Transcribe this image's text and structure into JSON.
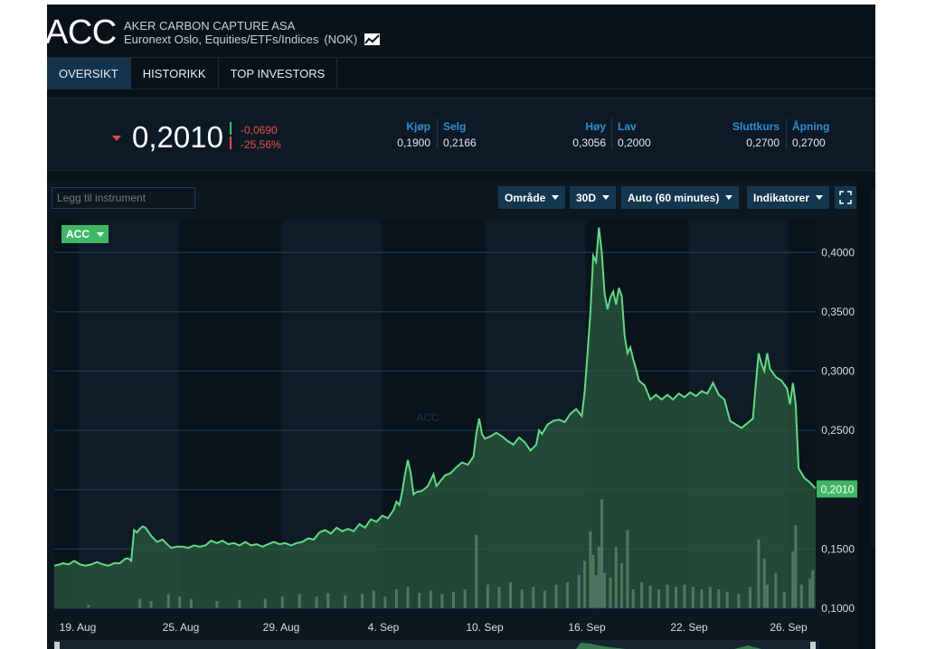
{
  "header": {
    "ticker": "ACC",
    "company_name": "AKER CARBON CAPTURE ASA",
    "exchange": "Euronext Oslo, Equities/ETFs/Indices",
    "currency": "(NOK)",
    "chart_icon": "line-chart-icon"
  },
  "tabs": [
    {
      "label": "OVERSIKT",
      "active": true
    },
    {
      "label": "HISTORIKK",
      "active": false
    },
    {
      "label": "TOP INVESTORS",
      "active": false
    }
  ],
  "quote": {
    "last": "0,2010",
    "change_abs": "-0,0690",
    "change_pct": "-25,56%",
    "direction_icon": "triangle-down-icon",
    "bid_label": "Kjøp",
    "bid": "0,1900",
    "ask_label": "Selg",
    "ask": "0,2166",
    "high_label": "Høy",
    "high": "0,3056",
    "low_label": "Lav",
    "low": "0,2000",
    "close_label": "Sluttkurs",
    "close": "0,2700",
    "open_label": "Åpning",
    "open": "0,2700"
  },
  "chart_controls": {
    "add_instrument_placeholder": "Legg til instrument",
    "range_label": "Område",
    "period_label": "30D",
    "interval_label": "Auto (60 minutes)",
    "indicators_label": "Indikatorer",
    "fullscreen_icon": "fullscreen-icon",
    "series_badge": "ACC"
  },
  "colors": {
    "accent_blue": "#2f8fd1",
    "down_red": "#e84c4c",
    "up_green": "#3fbf6a",
    "series_green": "#5fd27f",
    "panel_bg": "#0c1720"
  },
  "chart_data": {
    "type": "area",
    "series_name": "ACC",
    "watermark": "ACC",
    "current_value_label": "0,2010",
    "x_ticks": [
      "19. Aug",
      "25. Aug",
      "29. Aug",
      "4. Sep",
      "10. Sep",
      "16. Sep",
      "22. Sep",
      "26. Sep"
    ],
    "y_ticks": [
      "0,1000",
      "0,1500",
      "0,2000",
      "0,2500",
      "0,3000",
      "0,3500",
      "0,4000"
    ],
    "ylim": [
      0.1,
      0.42
    ],
    "points": [
      [
        0,
        0.136
      ],
      [
        2,
        0.137
      ],
      [
        3,
        0.138
      ],
      [
        5,
        0.137
      ],
      [
        7,
        0.14
      ],
      [
        9,
        0.137
      ],
      [
        11,
        0.136
      ],
      [
        13,
        0.137
      ],
      [
        15,
        0.139
      ],
      [
        17,
        0.137
      ],
      [
        19,
        0.136
      ],
      [
        21,
        0.138
      ],
      [
        23,
        0.138
      ],
      [
        25,
        0.142
      ],
      [
        26,
        0.142
      ],
      [
        27,
        0.14
      ],
      [
        28,
        0.166
      ],
      [
        29,
        0.164
      ],
      [
        30,
        0.167
      ],
      [
        31,
        0.169
      ],
      [
        32,
        0.168
      ],
      [
        34,
        0.161
      ],
      [
        36,
        0.156
      ],
      [
        38,
        0.158
      ],
      [
        40,
        0.153
      ],
      [
        41,
        0.151
      ],
      [
        43,
        0.152
      ],
      [
        45,
        0.152
      ],
      [
        47,
        0.151
      ],
      [
        49,
        0.153
      ],
      [
        51,
        0.152
      ],
      [
        53,
        0.153
      ],
      [
        55,
        0.157
      ],
      [
        57,
        0.155
      ],
      [
        59,
        0.157
      ],
      [
        61,
        0.154
      ],
      [
        63,
        0.155
      ],
      [
        65,
        0.153
      ],
      [
        67,
        0.156
      ],
      [
        69,
        0.153
      ],
      [
        71,
        0.154
      ],
      [
        73,
        0.152
      ],
      [
        75,
        0.154
      ],
      [
        77,
        0.156
      ],
      [
        79,
        0.154
      ],
      [
        81,
        0.155
      ],
      [
        83,
        0.153
      ],
      [
        85,
        0.155
      ],
      [
        87,
        0.156
      ],
      [
        89,
        0.159
      ],
      [
        91,
        0.158
      ],
      [
        93,
        0.164
      ],
      [
        95,
        0.166
      ],
      [
        97,
        0.163
      ],
      [
        99,
        0.168
      ],
      [
        101,
        0.165
      ],
      [
        103,
        0.167
      ],
      [
        105,
        0.165
      ],
      [
        107,
        0.171
      ],
      [
        109,
        0.168
      ],
      [
        111,
        0.175
      ],
      [
        113,
        0.173
      ],
      [
        115,
        0.178
      ],
      [
        117,
        0.176
      ],
      [
        119,
        0.183
      ],
      [
        120,
        0.19
      ],
      [
        121,
        0.187
      ],
      [
        122,
        0.198
      ],
      [
        123,
        0.213
      ],
      [
        124,
        0.225
      ],
      [
        125,
        0.214
      ],
      [
        126,
        0.196
      ],
      [
        127,
        0.198
      ],
      [
        129,
        0.199
      ],
      [
        131,
        0.203
      ],
      [
        133,
        0.213
      ],
      [
        134,
        0.203
      ],
      [
        135,
        0.206
      ],
      [
        137,
        0.212
      ],
      [
        139,
        0.214
      ],
      [
        141,
        0.219
      ],
      [
        143,
        0.223
      ],
      [
        145,
        0.221
      ],
      [
        147,
        0.228
      ],
      [
        148,
        0.247
      ],
      [
        149,
        0.26
      ],
      [
        150,
        0.247
      ],
      [
        151,
        0.243
      ],
      [
        153,
        0.245
      ],
      [
        155,
        0.248
      ],
      [
        157,
        0.245
      ],
      [
        159,
        0.241
      ],
      [
        161,
        0.238
      ],
      [
        163,
        0.244
      ],
      [
        165,
        0.24
      ],
      [
        167,
        0.233
      ],
      [
        169,
        0.238
      ],
      [
        170,
        0.25
      ],
      [
        171,
        0.247
      ],
      [
        173,
        0.255
      ],
      [
        175,
        0.258
      ],
      [
        177,
        0.259
      ],
      [
        179,
        0.257
      ],
      [
        181,
        0.264
      ],
      [
        183,
        0.268
      ],
      [
        185,
        0.262
      ],
      [
        186,
        0.283
      ],
      [
        187,
        0.315
      ],
      [
        188,
        0.35
      ],
      [
        189,
        0.397
      ],
      [
        190,
        0.392
      ],
      [
        191,
        0.421
      ],
      [
        192,
        0.4
      ],
      [
        193,
        0.365
      ],
      [
        194,
        0.352
      ],
      [
        195,
        0.362
      ],
      [
        196,
        0.367
      ],
      [
        197,
        0.356
      ],
      [
        198,
        0.37
      ],
      [
        199,
        0.363
      ],
      [
        200,
        0.33
      ],
      [
        201,
        0.315
      ],
      [
        202,
        0.32
      ],
      [
        203,
        0.31
      ],
      [
        204,
        0.302
      ],
      [
        205,
        0.292
      ],
      [
        207,
        0.288
      ],
      [
        209,
        0.276
      ],
      [
        211,
        0.28
      ],
      [
        213,
        0.276
      ],
      [
        215,
        0.28
      ],
      [
        217,
        0.276
      ],
      [
        219,
        0.281
      ],
      [
        221,
        0.278
      ],
      [
        223,
        0.282
      ],
      [
        225,
        0.279
      ],
      [
        227,
        0.283
      ],
      [
        229,
        0.281
      ],
      [
        231,
        0.29
      ],
      [
        233,
        0.28
      ],
      [
        235,
        0.276
      ],
      [
        237,
        0.258
      ],
      [
        239,
        0.255
      ],
      [
        241,
        0.252
      ],
      [
        243,
        0.256
      ],
      [
        245,
        0.26
      ],
      [
        246,
        0.289
      ],
      [
        247,
        0.315
      ],
      [
        248,
        0.306
      ],
      [
        249,
        0.3
      ],
      [
        250,
        0.315
      ],
      [
        251,
        0.302
      ],
      [
        253,
        0.295
      ],
      [
        255,
        0.292
      ],
      [
        257,
        0.285
      ],
      [
        258,
        0.272
      ],
      [
        259,
        0.29
      ],
      [
        260,
        0.272
      ],
      [
        261,
        0.218
      ],
      [
        263,
        0.21
      ],
      [
        265,
        0.206
      ],
      [
        267,
        0.201
      ]
    ],
    "volume_bars": [
      [
        12,
        0.003
      ],
      [
        30,
        0.008
      ],
      [
        34,
        0.006
      ],
      [
        40,
        0.012
      ],
      [
        44,
        0.01
      ],
      [
        48,
        0.008
      ],
      [
        57,
        0.006
      ],
      [
        65,
        0.007
      ],
      [
        74,
        0.008
      ],
      [
        80,
        0.01
      ],
      [
        86,
        0.012
      ],
      [
        92,
        0.01
      ],
      [
        96,
        0.013
      ],
      [
        102,
        0.011
      ],
      [
        108,
        0.012
      ],
      [
        112,
        0.015
      ],
      [
        116,
        0.01
      ],
      [
        120,
        0.016
      ],
      [
        124,
        0.018
      ],
      [
        128,
        0.013
      ],
      [
        132,
        0.015
      ],
      [
        136,
        0.012
      ],
      [
        140,
        0.014
      ],
      [
        144,
        0.016
      ],
      [
        148,
        0.062
      ],
      [
        152,
        0.02
      ],
      [
        156,
        0.018
      ],
      [
        160,
        0.022
      ],
      [
        164,
        0.016
      ],
      [
        168,
        0.018
      ],
      [
        172,
        0.015
      ],
      [
        176,
        0.02
      ],
      [
        180,
        0.022
      ],
      [
        184,
        0.028
      ],
      [
        186,
        0.04
      ],
      [
        188,
        0.065
      ],
      [
        189,
        0.045
      ],
      [
        190,
        0.028
      ],
      [
        191,
        0.052
      ],
      [
        192,
        0.092
      ],
      [
        193,
        0.03
      ],
      [
        195,
        0.026
      ],
      [
        197,
        0.052
      ],
      [
        199,
        0.038
      ],
      [
        201,
        0.066
      ],
      [
        203,
        0.016
      ],
      [
        206,
        0.022
      ],
      [
        209,
        0.019
      ],
      [
        212,
        0.016
      ],
      [
        215,
        0.02
      ],
      [
        218,
        0.018
      ],
      [
        221,
        0.02
      ],
      [
        224,
        0.018
      ],
      [
        227,
        0.016
      ],
      [
        230,
        0.018
      ],
      [
        233,
        0.016
      ],
      [
        236,
        0.014
      ],
      [
        240,
        0.012
      ],
      [
        244,
        0.018
      ],
      [
        247,
        0.058
      ],
      [
        249,
        0.042
      ],
      [
        250,
        0.02
      ],
      [
        253,
        0.03
      ],
      [
        256,
        0.014
      ],
      [
        259,
        0.048
      ],
      [
        260,
        0.07
      ],
      [
        262,
        0.02
      ],
      [
        265,
        0.025
      ],
      [
        266,
        0.032
      ]
    ]
  }
}
